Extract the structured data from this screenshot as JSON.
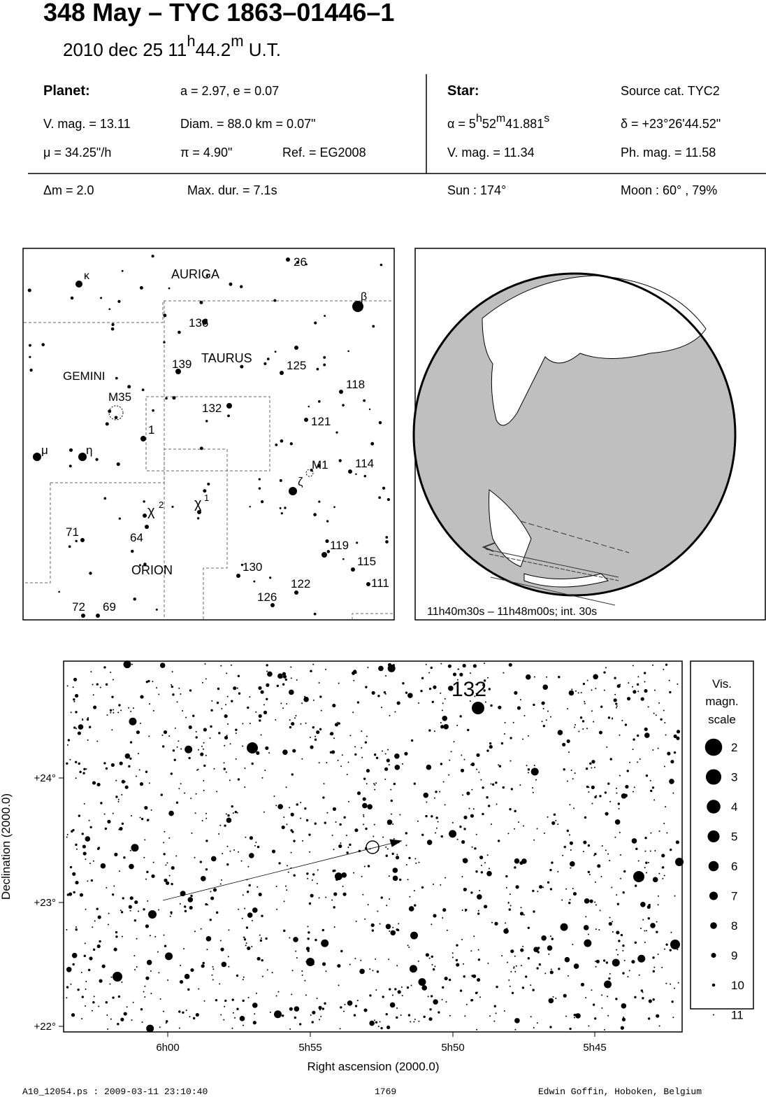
{
  "header": {
    "title": "348 May  –  TYC 1863–01446–1",
    "date": [
      "2010 dec 25  11",
      "h",
      "44.2",
      "m",
      " U.T."
    ]
  },
  "info": {
    "planet": [
      "Planet:",
      "a = 2.97, e = 0.07",
      "V. mag. = 13.11",
      "Diam. = 88.0 km = 0.07\"",
      "μ =  34.25\"/h",
      "π =  4.90\"",
      "Ref. = EG2008"
    ],
    "star": [
      "Star:",
      "Source cat.  TYC2",
      "δ = +23°26'44.52\"",
      "V. mag. = 11.34",
      "Ph. mag. = 11.58"
    ],
    "alpha": [
      "α =  5",
      "h",
      "52",
      "m",
      "41.881",
      "s"
    ],
    "event": [
      "Δm = 2.0",
      "Max. dur. = 7.1s",
      "Sun : 174°",
      "Moon :  60° , 79%"
    ]
  },
  "finder": {
    "labels": [
      "AURIGA",
      "TAURUS",
      "GEMINI",
      "ORION",
      "κ",
      "β",
      "26",
      "136",
      "139",
      "125",
      "118",
      "M35",
      "132",
      "121",
      "1",
      "μ",
      "η",
      "M1",
      "114",
      "ζ",
      "χ",
      "2",
      "χ",
      "1",
      "71",
      "64",
      "119",
      "115",
      "130",
      "122",
      "111",
      "126",
      "72",
      "69"
    ]
  },
  "globe": {
    "caption": "11h40m30s – 11h48m00s; int. 30s"
  },
  "starchart": {
    "yticks": [
      "+24°",
      "+23°",
      "+22°"
    ],
    "xticks": [
      "6h00",
      "5h55",
      "5h50",
      "5h45"
    ],
    "xlabel": "Right ascension (2000.0)",
    "ylabel": "Declination (2000.0)",
    "star_label": "132",
    "legend": {
      "title": [
        "Vis.",
        "magn.",
        "scale"
      ],
      "magnitudes": [
        2,
        3,
        4,
        5,
        6,
        7,
        8,
        9,
        10,
        11
      ]
    }
  },
  "footer": [
    "A10_12054.ps : 2009-03-11 23:10:40",
    "1769",
    "Edwin Goffin, Hoboken, Belgium"
  ]
}
